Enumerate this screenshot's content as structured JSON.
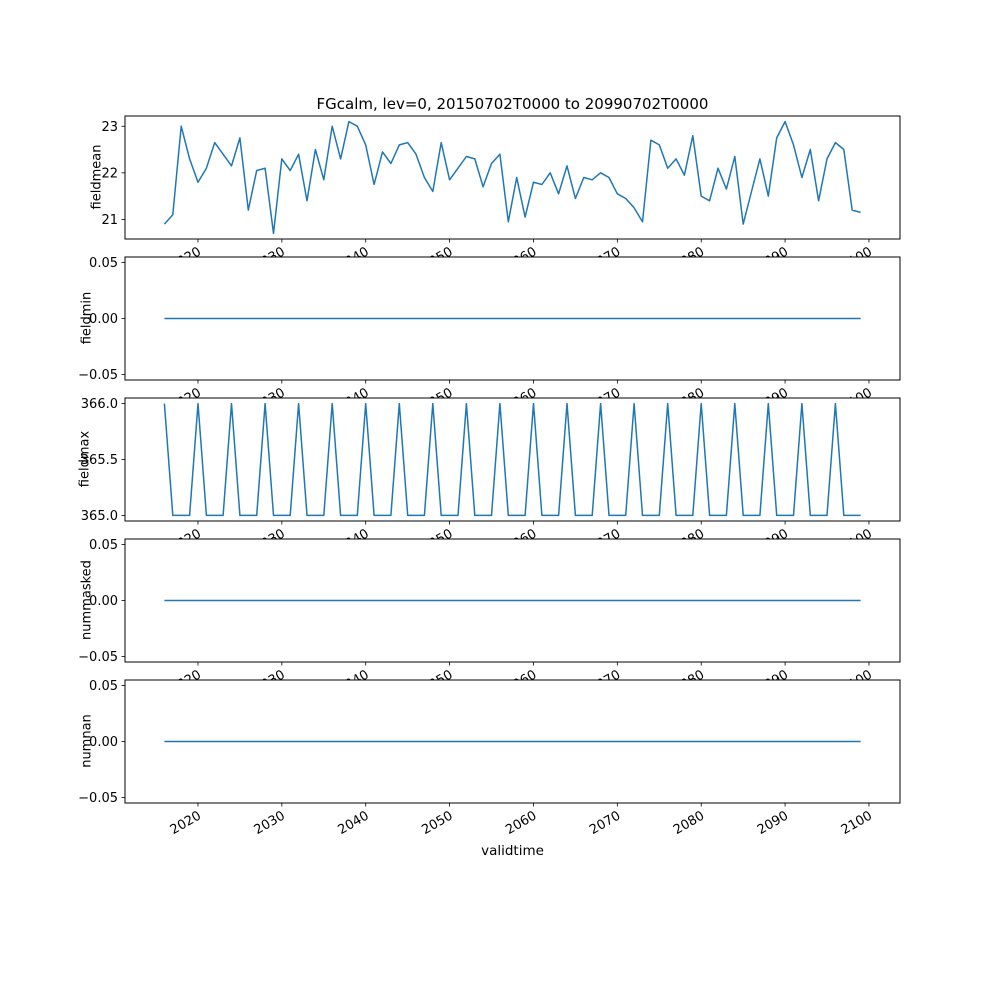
{
  "chart_data": {
    "type": "line",
    "title": "FGcalm, lev=0, 20150702T0000 to 20990702T0000",
    "xlabel": "validtime",
    "line_color": "#1f77b4",
    "grid": false,
    "legend": "none",
    "xlim": [
      2011.3,
      2103.7
    ],
    "x_ticks": [
      2020,
      2030,
      2040,
      2050,
      2060,
      2070,
      2080,
      2090,
      2100
    ],
    "x_tick_labels": [
      "2020",
      "2030",
      "2040",
      "2050",
      "2060",
      "2070",
      "2080",
      "2090",
      "2100"
    ],
    "x_years": [
      2016,
      2017,
      2018,
      2019,
      2020,
      2021,
      2022,
      2023,
      2024,
      2025,
      2026,
      2027,
      2028,
      2029,
      2030,
      2031,
      2032,
      2033,
      2034,
      2035,
      2036,
      2037,
      2038,
      2039,
      2040,
      2041,
      2042,
      2043,
      2044,
      2045,
      2046,
      2047,
      2048,
      2049,
      2050,
      2051,
      2052,
      2053,
      2054,
      2055,
      2056,
      2057,
      2058,
      2059,
      2060,
      2061,
      2062,
      2063,
      2064,
      2065,
      2066,
      2067,
      2068,
      2069,
      2070,
      2071,
      2072,
      2073,
      2074,
      2075,
      2076,
      2077,
      2078,
      2079,
      2080,
      2081,
      2082,
      2083,
      2084,
      2085,
      2086,
      2087,
      2088,
      2089,
      2090,
      2091,
      2092,
      2093,
      2094,
      2095,
      2096,
      2097,
      2098,
      2099
    ],
    "subplots": [
      {
        "ylabel": "fieldmean",
        "ylim": [
          20.58,
          23.22
        ],
        "yticks": [
          21,
          22,
          23
        ],
        "ytick_labels": [
          "21",
          "22",
          "23"
        ],
        "values": [
          20.9,
          21.1,
          23.0,
          22.3,
          21.8,
          22.1,
          22.65,
          22.4,
          22.15,
          22.75,
          21.2,
          22.05,
          22.1,
          20.7,
          22.3,
          22.05,
          22.4,
          21.4,
          22.5,
          21.85,
          23.0,
          22.3,
          23.1,
          23.0,
          22.6,
          21.75,
          22.45,
          22.2,
          22.6,
          22.65,
          22.4,
          21.9,
          21.6,
          22.65,
          21.85,
          22.1,
          22.35,
          22.3,
          21.7,
          22.2,
          22.4,
          20.95,
          21.9,
          21.05,
          21.8,
          21.75,
          22.0,
          21.55,
          22.15,
          21.45,
          21.9,
          21.85,
          22.0,
          21.9,
          21.55,
          21.45,
          21.25,
          20.95,
          22.7,
          22.6,
          22.1,
          22.3,
          21.95,
          22.8,
          21.5,
          21.4,
          22.1,
          21.65,
          22.35,
          20.9,
          21.6,
          22.3,
          21.5,
          22.75,
          23.1,
          22.6,
          21.9,
          22.5,
          21.4,
          22.3,
          22.65,
          22.5,
          21.2,
          21.15
        ]
      },
      {
        "ylabel": "fieldmin",
        "ylim": [
          -0.055,
          0.055
        ],
        "yticks": [
          -0.05,
          0.0,
          0.05
        ],
        "ytick_labels": [
          "−0.05",
          "0.00",
          "0.05"
        ],
        "values": [
          0,
          0,
          0,
          0,
          0,
          0,
          0,
          0,
          0,
          0,
          0,
          0,
          0,
          0,
          0,
          0,
          0,
          0,
          0,
          0,
          0,
          0,
          0,
          0,
          0,
          0,
          0,
          0,
          0,
          0,
          0,
          0,
          0,
          0,
          0,
          0,
          0,
          0,
          0,
          0,
          0,
          0,
          0,
          0,
          0,
          0,
          0,
          0,
          0,
          0,
          0,
          0,
          0,
          0,
          0,
          0,
          0,
          0,
          0,
          0,
          0,
          0,
          0,
          0,
          0,
          0,
          0,
          0,
          0,
          0,
          0,
          0,
          0,
          0,
          0,
          0,
          0,
          0,
          0,
          0,
          0,
          0,
          0,
          0
        ]
      },
      {
        "ylabel": "fieldmax",
        "ylim": [
          364.95,
          366.05
        ],
        "yticks": [
          365.0,
          365.5,
          366.0
        ],
        "ytick_labels": [
          "365.0",
          "365.5",
          "366.0"
        ],
        "values": [
          366,
          365,
          365,
          365,
          366,
          365,
          365,
          365,
          366,
          365,
          365,
          365,
          366,
          365,
          365,
          365,
          366,
          365,
          365,
          365,
          366,
          365,
          365,
          365,
          366,
          365,
          365,
          365,
          366,
          365,
          365,
          365,
          366,
          365,
          365,
          365,
          366,
          365,
          365,
          365,
          366,
          365,
          365,
          365,
          366,
          365,
          365,
          365,
          366,
          365,
          365,
          365,
          366,
          365,
          365,
          365,
          366,
          365,
          365,
          365,
          366,
          365,
          365,
          365,
          366,
          365,
          365,
          365,
          366,
          365,
          365,
          365,
          366,
          365,
          365,
          365,
          366,
          365,
          365,
          365,
          366,
          365,
          365,
          365
        ]
      },
      {
        "ylabel": "nummasked",
        "ylim": [
          -0.055,
          0.055
        ],
        "yticks": [
          -0.05,
          0.0,
          0.05
        ],
        "ytick_labels": [
          "−0.05",
          "0.00",
          "0.05"
        ],
        "values": [
          0,
          0,
          0,
          0,
          0,
          0,
          0,
          0,
          0,
          0,
          0,
          0,
          0,
          0,
          0,
          0,
          0,
          0,
          0,
          0,
          0,
          0,
          0,
          0,
          0,
          0,
          0,
          0,
          0,
          0,
          0,
          0,
          0,
          0,
          0,
          0,
          0,
          0,
          0,
          0,
          0,
          0,
          0,
          0,
          0,
          0,
          0,
          0,
          0,
          0,
          0,
          0,
          0,
          0,
          0,
          0,
          0,
          0,
          0,
          0,
          0,
          0,
          0,
          0,
          0,
          0,
          0,
          0,
          0,
          0,
          0,
          0,
          0,
          0,
          0,
          0,
          0,
          0,
          0,
          0,
          0,
          0,
          0,
          0
        ]
      },
      {
        "ylabel": "numnan",
        "ylim": [
          -0.055,
          0.055
        ],
        "yticks": [
          -0.05,
          0.0,
          0.05
        ],
        "ytick_labels": [
          "−0.05",
          "0.00",
          "0.05"
        ],
        "values": [
          0,
          0,
          0,
          0,
          0,
          0,
          0,
          0,
          0,
          0,
          0,
          0,
          0,
          0,
          0,
          0,
          0,
          0,
          0,
          0,
          0,
          0,
          0,
          0,
          0,
          0,
          0,
          0,
          0,
          0,
          0,
          0,
          0,
          0,
          0,
          0,
          0,
          0,
          0,
          0,
          0,
          0,
          0,
          0,
          0,
          0,
          0,
          0,
          0,
          0,
          0,
          0,
          0,
          0,
          0,
          0,
          0,
          0,
          0,
          0,
          0,
          0,
          0,
          0,
          0,
          0,
          0,
          0,
          0,
          0,
          0,
          0,
          0,
          0,
          0,
          0,
          0,
          0,
          0,
          0,
          0,
          0,
          0,
          0
        ]
      }
    ]
  }
}
